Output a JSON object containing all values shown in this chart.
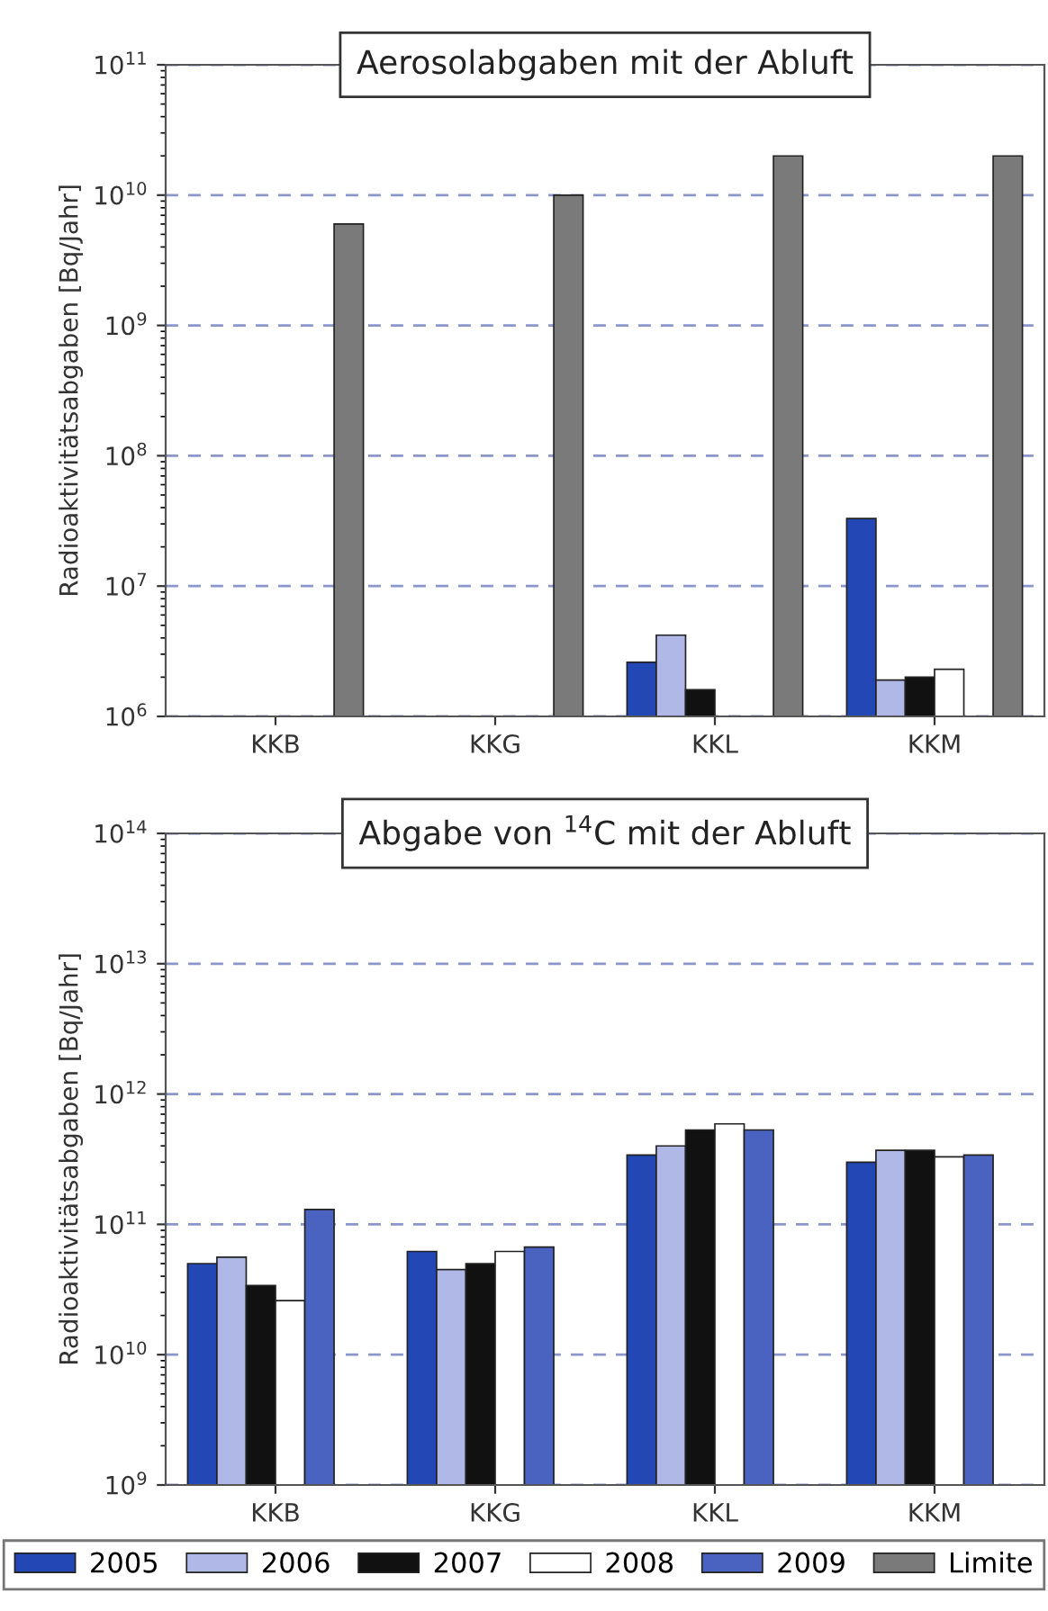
{
  "chart_data": [
    {
      "type": "bar",
      "title": "Aerosolabgaben mit der Abluft",
      "ylabel": "Radioaktivitätsabgaben [Bq/Jahr]",
      "categories": [
        "KKB",
        "KKG",
        "KKL",
        "KKM"
      ],
      "log": true,
      "ylim": [
        1000000,
        100000000000
      ],
      "yticks": [
        {
          "value": 1000000,
          "label": "10$^{6}$"
        },
        {
          "value": 10000000,
          "label": "10$^{7}$"
        },
        {
          "value": 100000000,
          "label": "10$^{8}$"
        },
        {
          "value": 1000000000,
          "label": "10$^{9}$"
        },
        {
          "value": 10000000000,
          "label": "10$^{10}$"
        },
        {
          "value": 100000000000,
          "label": "10$^{11}$"
        }
      ],
      "grid": "y",
      "legend": "bottom",
      "series": [
        {
          "name": "2005",
          "color": "#2347b5",
          "values": [
            null,
            null,
            2600000,
            33000000
          ]
        },
        {
          "name": "2006",
          "color": "#b0b8e8",
          "values": [
            null,
            null,
            4200000,
            1900000
          ]
        },
        {
          "name": "2007",
          "color": "#111111",
          "values": [
            null,
            null,
            1600000,
            2000000
          ]
        },
        {
          "name": "2008",
          "color": "#ffffff",
          "values": [
            null,
            null,
            null,
            2300000
          ]
        },
        {
          "name": "Limite",
          "color": "#7a7a7a",
          "values": [
            6000000000,
            10000000000,
            20000000000,
            20000000000
          ]
        }
      ]
    },
    {
      "type": "bar",
      "title": "Abgabe von $^{14}$C mit der Abluft",
      "ylabel": "Radioaktivitätsabgaben [Bq/Jahr]",
      "categories": [
        "KKB",
        "KKG",
        "KKL",
        "KKM"
      ],
      "log": true,
      "ylim": [
        1000000000,
        100000000000000
      ],
      "yticks": [
        {
          "value": 1000000000,
          "label": "10$^{9}$"
        },
        {
          "value": 10000000000,
          "label": "10$^{10}$"
        },
        {
          "value": 100000000000,
          "label": "10$^{11}$"
        },
        {
          "value": 1000000000000,
          "label": "10$^{12}$"
        },
        {
          "value": 10000000000000,
          "label": "10$^{13}$"
        },
        {
          "value": 100000000000000,
          "label": "10$^{14}$"
        }
      ],
      "grid": "y",
      "legend": "bottom",
      "series": [
        {
          "name": "2005",
          "color": "#2347b5",
          "values": [
            50000000000,
            62000000000,
            340000000000,
            300000000000
          ]
        },
        {
          "name": "2006",
          "color": "#b0b8e8",
          "values": [
            56000000000,
            45000000000,
            400000000000,
            370000000000
          ]
        },
        {
          "name": "2007",
          "color": "#111111",
          "values": [
            34000000000,
            50000000000,
            530000000000,
            370000000000
          ]
        },
        {
          "name": "2008",
          "color": "#ffffff",
          "values": [
            26000000000,
            62000000000,
            590000000000,
            330000000000
          ]
        },
        {
          "name": "2009",
          "color": "#4a63c0",
          "values": [
            130000000000,
            67000000000,
            530000000000,
            340000000000
          ]
        }
      ]
    }
  ]
}
